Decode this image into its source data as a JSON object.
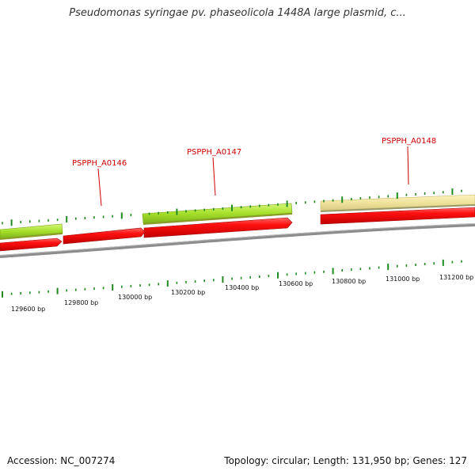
{
  "title": "Pseudomonas syringae pv. phaseolicola 1448A large plasmid, c...",
  "footer": {
    "accession": "Accession: NC_007274",
    "summary": "Topology: circular; Length: 131,950 bp; Genes: 127"
  },
  "colors": {
    "backbone": "#8c8c8c",
    "tick": "#1f8a1f",
    "cds_forward": "#e4000c",
    "gene_green": "#a6e02c",
    "gene_tan": "#efe39c",
    "label": "#cc0000"
  },
  "bp_labels": [
    "129600 bp",
    "129800 bp",
    "130000 bp",
    "130200 bp",
    "130400 bp",
    "130600 bp",
    "130800 bp",
    "131000 bp",
    "131200 bp"
  ],
  "gene_labels": [
    "PSPPH_A0146",
    "PSPPH_A0147",
    "PSPPH_A0148"
  ]
}
